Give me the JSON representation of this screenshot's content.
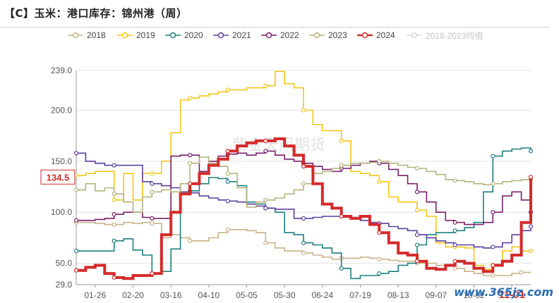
{
  "title": "【C】玉米：港口库存：锦州港（周）",
  "watermark_site": "www.365jz.com",
  "watermark_center": "紫金天风期货",
  "chart_data": {
    "type": "line",
    "title": "【C】玉米：港口库存：锦州港（周）",
    "xlabel": "",
    "ylabel": "",
    "ylim": [
      29,
      239
    ],
    "yticks": [
      "29.0",
      "50.0",
      "100.0",
      "150.0",
      "200.0",
      "239.0"
    ],
    "ytick_values": [
      29,
      50,
      100,
      150,
      200,
      239
    ],
    "xtick_labels": [
      "01-26",
      "02-20",
      "03-16",
      "04-10",
      "05-05",
      "05-30",
      "06-24",
      "07-19",
      "08-13",
      "09-07",
      "10-02",
      "11-01"
    ],
    "xtick_weeks": [
      2,
      6,
      10,
      14,
      18,
      22,
      26,
      30,
      34,
      38,
      42,
      46
    ],
    "highlight_x_label": "11-01",
    "current_value_label": "134.5",
    "current_value": 134.5,
    "highlight_color": "#d42a2a",
    "legend_position": "top",
    "grid": "horizontal",
    "series": [
      {
        "name": "2018",
        "color": "#c8b388",
        "values": [
          90,
          90,
          89,
          88,
          88,
          90,
          89,
          90,
          89,
          75,
          78,
          75,
          72,
          72,
          75,
          80,
          83,
          83,
          82,
          80,
          70,
          65,
          62,
          62,
          60,
          58,
          56,
          54,
          55,
          55,
          56,
          55,
          54,
          53,
          52,
          52,
          50,
          50,
          48,
          47,
          45,
          42,
          40,
          38,
          38,
          38,
          40,
          41
        ]
      },
      {
        "name": "2019",
        "color": "#f5c518",
        "values": [
          136,
          138,
          140,
          140,
          112,
          138,
          112,
          138,
          138,
          150,
          178,
          210,
          212,
          214,
          216,
          218,
          220,
          220,
          222,
          222,
          224,
          238,
          226,
          222,
          200,
          186,
          180,
          180,
          170,
          140,
          138,
          136,
          130,
          115,
          110,
          110,
          102,
          96,
          70,
          66,
          66,
          65,
          48,
          44,
          48,
          62,
          66,
          62,
          62
        ]
      },
      {
        "name": "2020",
        "color": "#1c7f80",
        "values": [
          62,
          62,
          62,
          62,
          72,
          74,
          63,
          58,
          40,
          42,
          64,
          120,
          121,
          128,
          134,
          133,
          130,
          126,
          110,
          108,
          104,
          100,
          80,
          78,
          70,
          68,
          65,
          60,
          45,
          35,
          38,
          38,
          40,
          42,
          48,
          50,
          68,
          78,
          80,
          80,
          82,
          85,
          90,
          120,
          155,
          160,
          162,
          163,
          160
        ]
      },
      {
        "name": "2021",
        "color": "#5b3f9f",
        "values": [
          158,
          150,
          148,
          146,
          146,
          146,
          146,
          130,
          128,
          126,
          124,
          120,
          119,
          116,
          114,
          112,
          111,
          110,
          108,
          106,
          104,
          103,
          103,
          94,
          94,
          95,
          96,
          96,
          96,
          95,
          92,
          90,
          89,
          86,
          84,
          82,
          78,
          75,
          72,
          70,
          68,
          68,
          66,
          65,
          66,
          70,
          78,
          82,
          86
        ]
      },
      {
        "name": "2022",
        "color": "#7a1f6a",
        "values": [
          92,
          92,
          93,
          94,
          98,
          100,
          100,
          95,
          94,
          94,
          155,
          156,
          156,
          140,
          150,
          155,
          157,
          158,
          156,
          158,
          160,
          156,
          152,
          150,
          148,
          145,
          142,
          140,
          143,
          146,
          148,
          150,
          148,
          142,
          136,
          128,
          120,
          110,
          100,
          92,
          90,
          88,
          88,
          90,
          100,
          116,
          120,
          112,
          100
        ]
      },
      {
        "name": "2023",
        "color": "#b5b37d",
        "values": [
          122,
          128,
          121,
          124,
          118,
          110,
          100,
          115,
          120,
          122,
          120,
          128,
          148,
          154,
          148,
          145,
          138,
          124,
          105,
          110,
          112,
          114,
          118,
          122,
          128,
          138,
          140,
          143,
          146,
          148,
          148,
          149,
          150,
          148,
          146,
          144,
          143,
          140,
          137,
          132,
          131,
          130,
          128,
          127,
          128,
          130,
          131,
          132,
          132
        ]
      },
      {
        "name": "2024",
        "color": "#d42a2a",
        "values": [
          43,
          46,
          48,
          40,
          36,
          35,
          38,
          38,
          40,
          78,
          100,
          118,
          128,
          138,
          146,
          152,
          160,
          165,
          168,
          170,
          170,
          172,
          165,
          156,
          145,
          128,
          108,
          104,
          96,
          94,
          96,
          88,
          80,
          70,
          60,
          58,
          52,
          45,
          44,
          48,
          52,
          50,
          45,
          42,
          48,
          52,
          58,
          90,
          134.5
        ]
      },
      {
        "name": "2018-2023均值",
        "color": "#d8d8d8",
        "values": []
      }
    ]
  }
}
